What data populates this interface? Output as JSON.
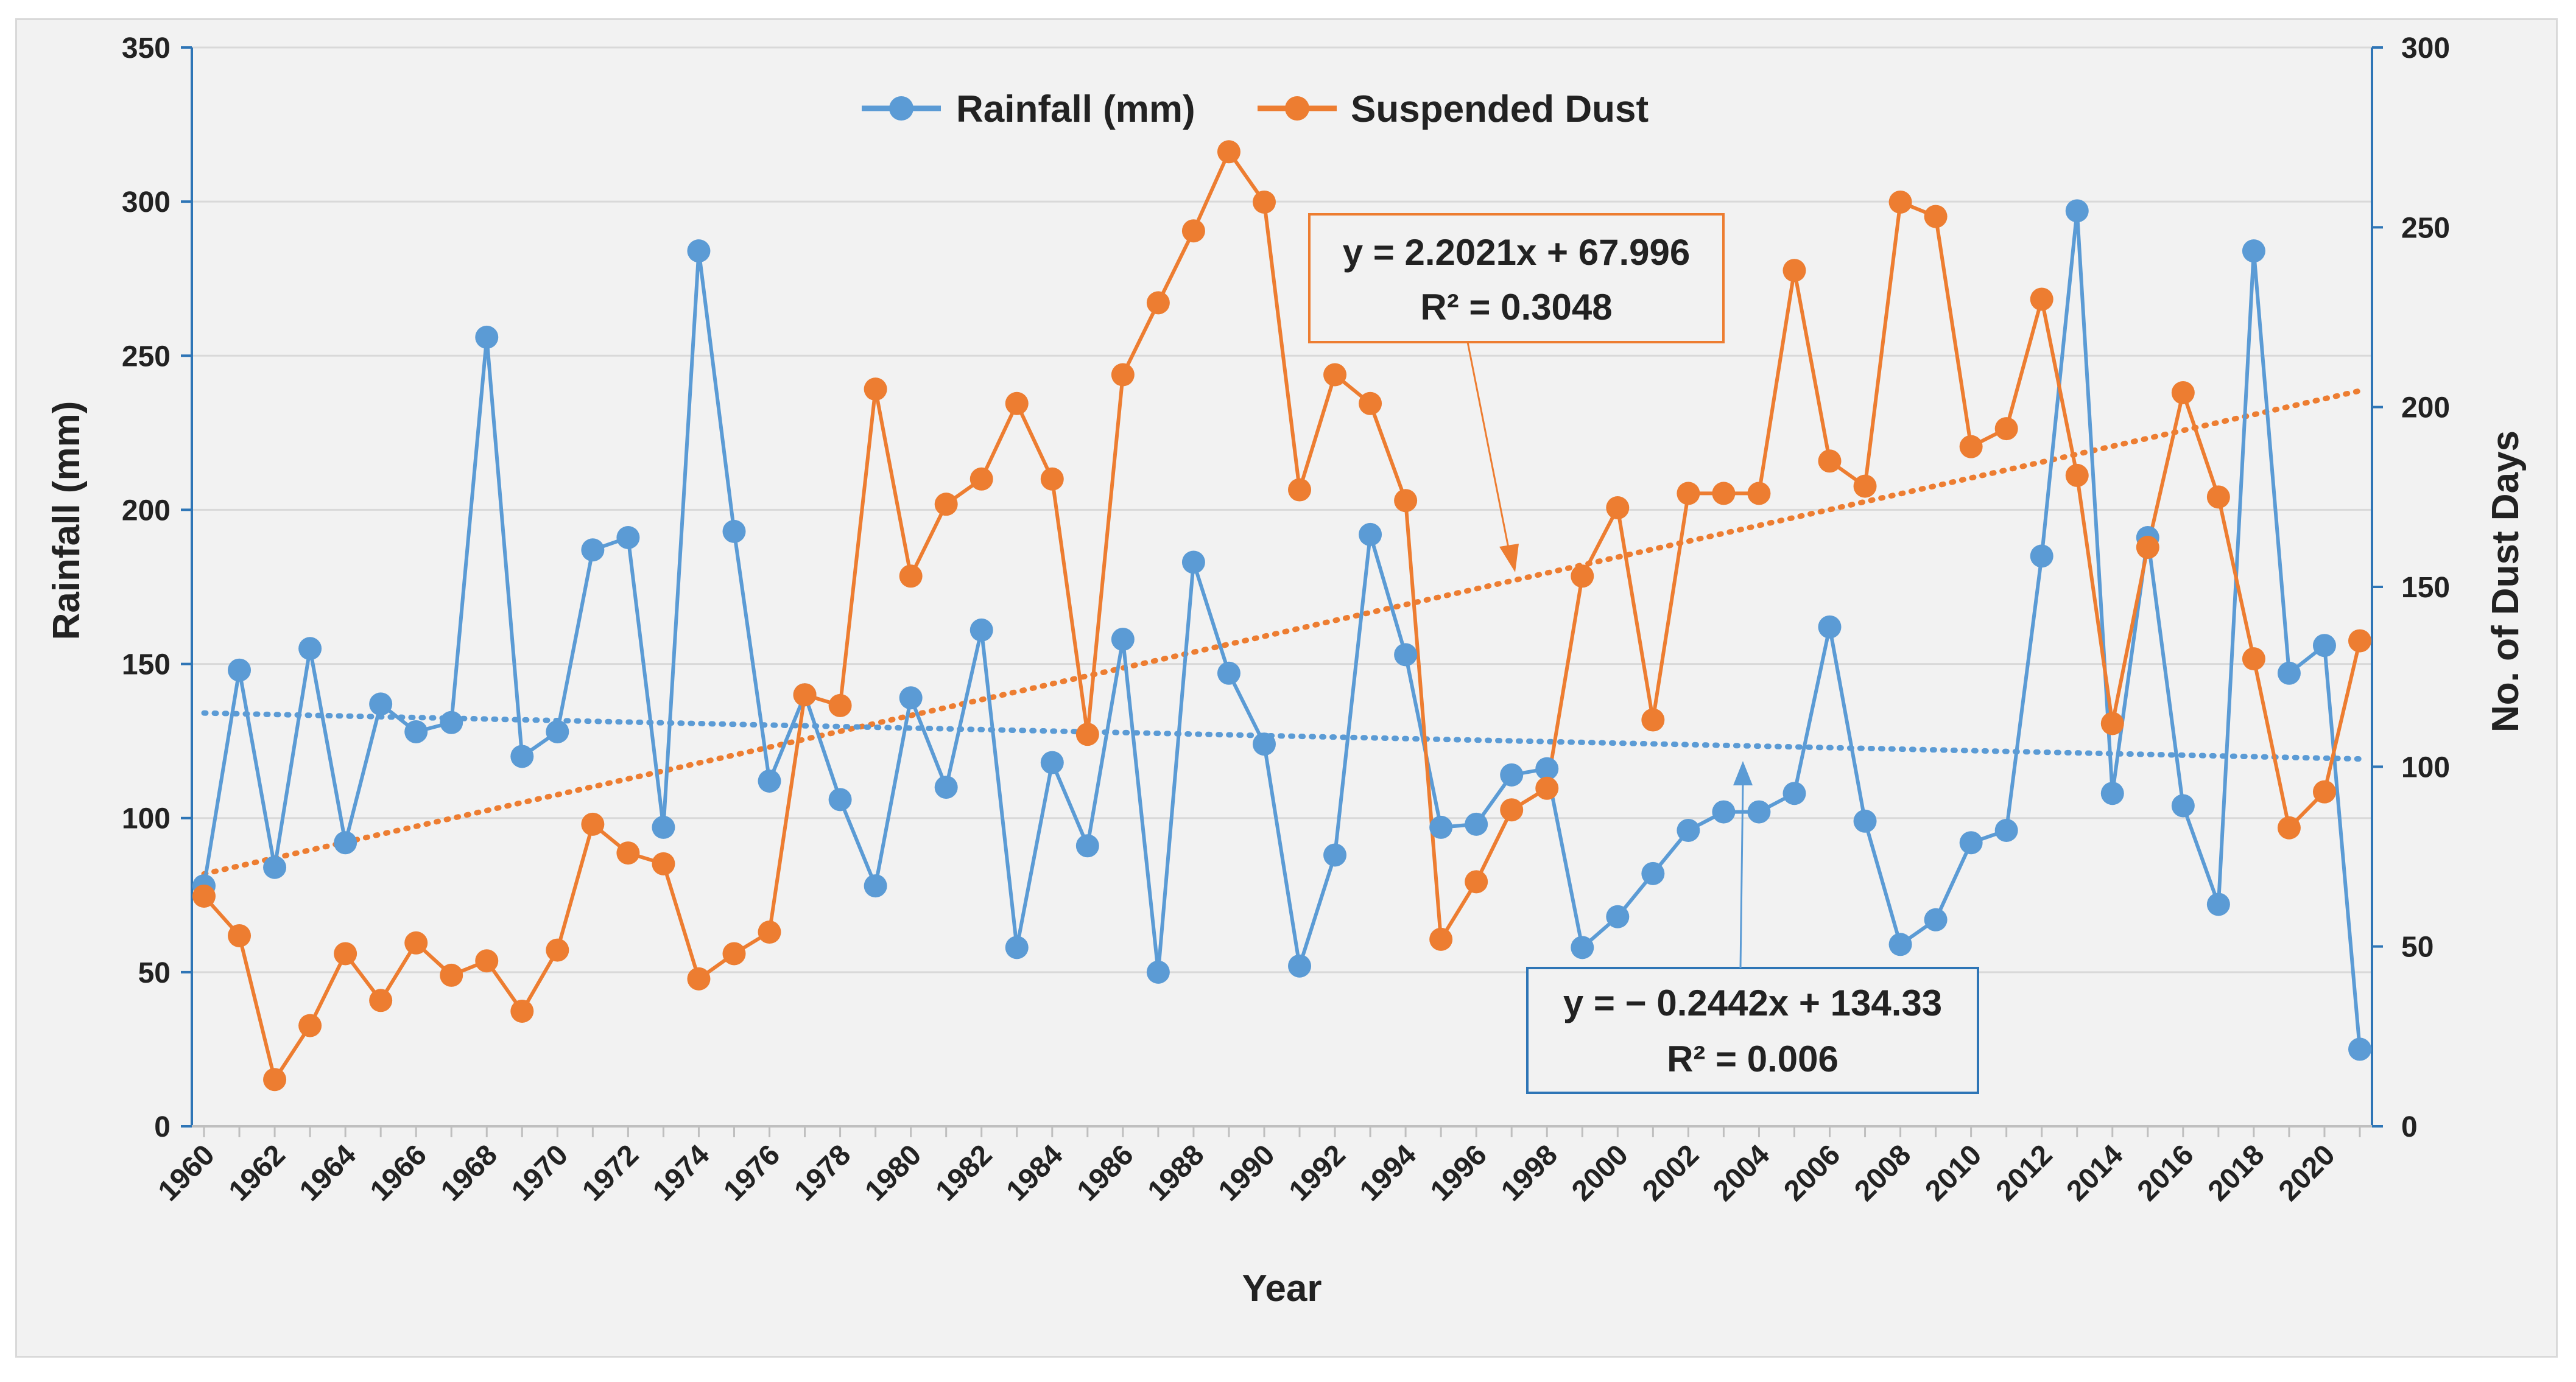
{
  "colors": {
    "rainfall": "#5b9bd5",
    "dust": "#ed7d31",
    "axis": "#2e75b6",
    "grid": "#d9d9d9",
    "eq_box_dust": "#ed7d31",
    "eq_box_rain": "#2e75b6"
  },
  "chart_data": {
    "type": "line",
    "xlabel": "Year",
    "ylabel_left": "Rainfall (mm)",
    "ylabel_right": "No. of Dust Days",
    "ylim_left": [
      0,
      350
    ],
    "ylim_right": [
      0,
      300
    ],
    "yticks_left": [
      "0",
      "50",
      "100",
      "150",
      "200",
      "250",
      "300",
      "350"
    ],
    "yticks_right": [
      "0",
      "50",
      "100",
      "150",
      "200",
      "250",
      "300"
    ],
    "x_tick_labels": [
      "1960",
      "1962",
      "1964",
      "1966",
      "1968",
      "1970",
      "1972",
      "1974",
      "1976",
      "1978",
      "1980",
      "1982",
      "1984",
      "1986",
      "1988",
      "1990",
      "1992",
      "1994",
      "1996",
      "1998",
      "2000",
      "2002",
      "2004",
      "2006",
      "2008",
      "2010",
      "2012",
      "2014",
      "2016",
      "2018",
      "2020"
    ],
    "years": [
      1960,
      1961,
      1962,
      1963,
      1964,
      1965,
      1966,
      1967,
      1968,
      1969,
      1970,
      1971,
      1972,
      1973,
      1974,
      1975,
      1976,
      1977,
      1978,
      1979,
      1980,
      1981,
      1982,
      1983,
      1984,
      1985,
      1986,
      1987,
      1988,
      1989,
      1990,
      1991,
      1992,
      1993,
      1994,
      1995,
      1996,
      1997,
      1998,
      1999,
      2000,
      2001,
      2002,
      2003,
      2004,
      2005,
      2006,
      2007,
      2008,
      2009,
      2010,
      2011,
      2012,
      2013,
      2014,
      2015,
      2016,
      2017,
      2018,
      2019,
      2020,
      2021
    ],
    "series": [
      {
        "name": "Rainfall (mm)",
        "axis": "left",
        "values": [
          78,
          148,
          84,
          155,
          92,
          137,
          128,
          131,
          256,
          120,
          128,
          187,
          191,
          97,
          284,
          193,
          112,
          140,
          106,
          78,
          139,
          110,
          161,
          58,
          118,
          91,
          158,
          50,
          183,
          147,
          124,
          52,
          88,
          192,
          153,
          97,
          98,
          114,
          116,
          58,
          68,
          82,
          96,
          102,
          102,
          108,
          162,
          99,
          59,
          67,
          92,
          96,
          185,
          297,
          108,
          191,
          104,
          72,
          284,
          147,
          156,
          25
        ]
      },
      {
        "name": "Suspended Dust",
        "axis": "right",
        "values": [
          64,
          53,
          13,
          28,
          48,
          35,
          51,
          42,
          46,
          32,
          49,
          84,
          76,
          73,
          41,
          48,
          54,
          120,
          117,
          205,
          153,
          173,
          180,
          201,
          180,
          109,
          209,
          229,
          249,
          271,
          257,
          177,
          209,
          201,
          174,
          52,
          68,
          88,
          94,
          153,
          172,
          113,
          176,
          176,
          176,
          238,
          185,
          178,
          257,
          253,
          189,
          194,
          230,
          181,
          112,
          161,
          204,
          175,
          130,
          83,
          93,
          135
        ]
      }
    ],
    "trendlines": [
      {
        "series": "Suspended Dust",
        "axis": "right",
        "slope": 2.2021,
        "intercept": 67.996,
        "equation": "y = 2.2021x + 67.996",
        "r2": "R² = 0.3048"
      },
      {
        "series": "Rainfall (mm)",
        "axis": "left",
        "slope": -0.2442,
        "intercept": 134.33,
        "equation": "y = − 0.2442x + 134.33",
        "r2": "R² = 0.006"
      }
    ],
    "legend": [
      "Rainfall (mm)",
      "Suspended Dust"
    ],
    "legend_position": "top-center",
    "grid": true
  }
}
